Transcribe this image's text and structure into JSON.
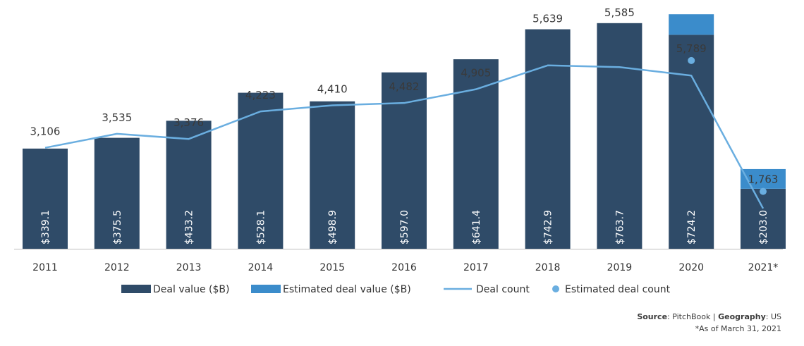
{
  "chart_data": {
    "type": "bar",
    "categories": [
      "2011",
      "2012",
      "2013",
      "2014",
      "2015",
      "2016",
      "2017",
      "2018",
      "2019",
      "2020",
      "2021*"
    ],
    "series": [
      {
        "name": "Deal value ($B)",
        "kind": "bar",
        "color": "#2f4b68",
        "values": [
          339.1,
          375.5,
          433.2,
          528.1,
          498.9,
          597.0,
          641.4,
          742.9,
          763.7,
          724.2,
          203.0
        ],
        "labels": [
          "$339.1",
          "$375.5",
          "$433.2",
          "$528.1",
          "$498.9",
          "$597.0",
          "$641.4",
          "$742.9",
          "$763.7",
          "$724.2",
          "$203.0"
        ]
      },
      {
        "name": "Estimated deal value ($B)",
        "kind": "bar-stack",
        "color": "#3b8ccb",
        "values": [
          0,
          0,
          0,
          0,
          0,
          0,
          0,
          0,
          0,
          69.6,
          66.7
        ]
      },
      {
        "name": "Deal count",
        "kind": "line",
        "color": "#6aaee0",
        "values": [
          3106,
          3535,
          3376,
          4223,
          4410,
          4482,
          4905,
          5639,
          5585,
          5325,
          1240
        ],
        "labels": [
          "3,106",
          "3,535",
          "3,376",
          "4,223",
          "4,410",
          "4,482",
          "4,905",
          "5,639",
          "5,585",
          "",
          ""
        ]
      },
      {
        "name": "Estimated deal count",
        "kind": "dot",
        "color": "#6aaee0",
        "values": [
          null,
          null,
          null,
          null,
          null,
          null,
          null,
          null,
          null,
          5789,
          1763
        ],
        "labels": [
          "",
          "",
          "",
          "",
          "",
          "",
          "",
          "",
          "",
          "5,789",
          "1,763"
        ]
      }
    ],
    "value_axis": [
      0,
      842
    ],
    "count_axis": [
      0,
      7650
    ]
  },
  "legend": [
    {
      "label": "Deal value ($B)",
      "type": "bar",
      "color": "#2f4b68"
    },
    {
      "label": "Estimated deal value ($B)",
      "type": "bar",
      "color": "#3b8ccb"
    },
    {
      "label": "Deal count",
      "type": "line",
      "color": "#6aaee0"
    },
    {
      "label": "Estimated deal count",
      "type": "dot",
      "color": "#6aaee0"
    }
  ],
  "footer": {
    "source_label": "Source",
    "source_value": ": PitchBook | ",
    "geo_label": "Geography",
    "geo_value": ": US",
    "note": "*As of March 31, 2021"
  }
}
